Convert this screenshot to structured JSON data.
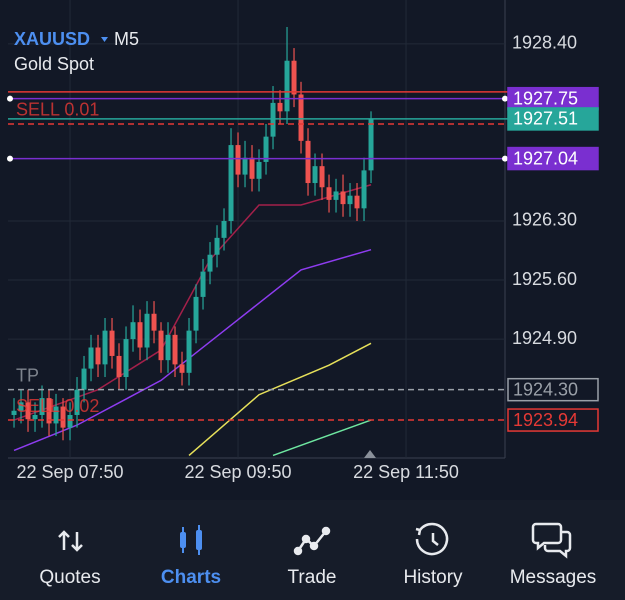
{
  "header": {
    "symbol": "XAUUSD",
    "timeframe": "M5",
    "description": "Gold Spot"
  },
  "chart_data": {
    "type": "candlestick",
    "open": [
      1924.0,
      1924.05,
      1924.15,
      1923.95,
      1924.0,
      1924.2,
      1923.9,
      1924.1,
      1923.85,
      1924.0,
      1924.3,
      1924.55,
      1924.8,
      1924.6,
      1925.0,
      1924.7,
      1924.45,
      1924.9,
      1925.1,
      1924.8,
      1925.2,
      1925.0,
      1924.65,
      1924.95,
      1924.6,
      1924.5,
      1925.0,
      1925.4,
      1925.7,
      1925.9,
      1926.1,
      1926.3,
      1927.2,
      1926.85,
      1927.05,
      1926.8,
      1927.0,
      1927.3,
      1927.7,
      1927.6,
      1928.2,
      1927.8,
      1927.25,
      1926.75,
      1926.95,
      1926.7,
      1926.55,
      1926.65,
      1926.5,
      1926.6,
      1926.45,
      1926.9
    ],
    "high": [
      1924.2,
      1924.3,
      1924.3,
      1924.15,
      1924.35,
      1924.3,
      1924.25,
      1924.2,
      1924.15,
      1924.45,
      1924.7,
      1924.95,
      1924.95,
      1925.15,
      1925.15,
      1924.85,
      1925.05,
      1925.3,
      1925.25,
      1925.35,
      1925.35,
      1925.1,
      1925.1,
      1925.05,
      1924.75,
      1925.15,
      1925.55,
      1925.85,
      1926.05,
      1926.25,
      1926.45,
      1927.4,
      1927.35,
      1927.25,
      1927.2,
      1927.15,
      1927.45,
      1927.9,
      1927.85,
      1928.6,
      1928.35,
      1927.95,
      1927.4,
      1927.1,
      1927.1,
      1926.85,
      1926.8,
      1926.85,
      1926.75,
      1926.75,
      1927.05,
      1927.6
    ],
    "low": [
      1923.85,
      1923.9,
      1923.8,
      1923.8,
      1923.85,
      1923.75,
      1923.75,
      1923.7,
      1923.7,
      1923.85,
      1924.15,
      1924.4,
      1924.45,
      1924.45,
      1924.55,
      1924.3,
      1924.3,
      1924.75,
      1924.65,
      1924.65,
      1924.85,
      1924.5,
      1924.5,
      1924.45,
      1924.35,
      1924.35,
      1924.85,
      1925.25,
      1925.55,
      1925.75,
      1925.95,
      1926.15,
      1926.7,
      1926.7,
      1926.65,
      1926.65,
      1926.85,
      1927.15,
      1927.45,
      1927.45,
      1927.65,
      1927.1,
      1926.6,
      1926.6,
      1926.55,
      1926.4,
      1926.4,
      1926.35,
      1926.35,
      1926.3,
      1926.3,
      1926.75
    ],
    "close": [
      1924.05,
      1924.15,
      1923.95,
      1924.0,
      1924.2,
      1923.9,
      1924.1,
      1923.85,
      1924.0,
      1924.3,
      1924.55,
      1924.8,
      1924.6,
      1925.0,
      1924.7,
      1924.45,
      1924.9,
      1925.1,
      1924.8,
      1925.2,
      1925.0,
      1924.65,
      1924.95,
      1924.6,
      1924.5,
      1925.0,
      1925.4,
      1925.7,
      1925.9,
      1926.1,
      1926.3,
      1927.2,
      1926.85,
      1927.05,
      1926.8,
      1927.0,
      1927.3,
      1927.7,
      1927.6,
      1928.2,
      1927.8,
      1927.25,
      1926.75,
      1926.95,
      1926.7,
      1926.55,
      1926.65,
      1926.5,
      1926.6,
      1926.45,
      1926.9,
      1927.51
    ],
    "bull_color": "#26a69a",
    "bear_color": "#ef5350",
    "series": [
      {
        "color": "#a3204a",
        "x": [
          0,
          12,
          21,
          28,
          35,
          41,
          51
        ],
        "values": [
          1923.94,
          1924.3,
          1924.77,
          1925.84,
          1926.49,
          1926.49,
          1926.73
        ]
      },
      {
        "color": "#8e3cf0",
        "x": [
          0,
          9,
          21,
          32,
          41,
          51
        ],
        "values": [
          1923.58,
          1923.88,
          1924.41,
          1925.13,
          1925.72,
          1925.96
        ]
      },
      {
        "color": "#e6e05a",
        "x": [
          25,
          35,
          45,
          51
        ],
        "values": [
          1923.52,
          1924.24,
          1924.59,
          1924.85
        ]
      },
      {
        "color": "#6ee6a0",
        "x": [
          37,
          45,
          51
        ],
        "values": [
          1923.52,
          1923.76,
          1923.94
        ]
      }
    ],
    "xlim": [
      -0.86,
      70.14
    ],
    "xticks": [
      {
        "value": 8,
        "label": "22 Sep 07:50"
      },
      {
        "value": 32,
        "label": "22 Sep 09:50"
      },
      {
        "value": 56,
        "label": "22 Sep 11:50"
      }
    ],
    "ylim": [
      1923.49,
      1928.92
    ],
    "yticks": [
      {
        "value": 1928.4,
        "label": "1928.40"
      },
      {
        "value": 1926.3,
        "label": "1926.30"
      },
      {
        "value": 1925.6,
        "label": "1925.60"
      },
      {
        "value": 1924.9,
        "label": "1924.90"
      }
    ],
    "grid": true,
    "levels": [
      {
        "price": 1927.83,
        "color": "#e53935"
      },
      {
        "price": 1927.75,
        "color": "#7a2fd0",
        "tag": "filled",
        "ends": true
      },
      {
        "price": 1927.51,
        "color": "#26a69a",
        "tag": "filled"
      },
      {
        "price": 1927.45,
        "color": "#e53935",
        "dash": true,
        "label": "SELL 0.01"
      },
      {
        "price": 1927.04,
        "color": "#7a2fd0",
        "tag": "filled",
        "ends": true
      },
      {
        "price": 1924.3,
        "price_label": "1924.30",
        "color": "#9aa0a8",
        "dash": true,
        "tag": "outline",
        "label": "TP"
      },
      {
        "price": 1923.94,
        "color": "#e53935",
        "dash": true,
        "tag": "outline",
        "label": "SELL 0.02"
      }
    ]
  },
  "nav": {
    "items": [
      "Quotes",
      "Charts",
      "Trade",
      "History",
      "Messages"
    ],
    "active": 1
  }
}
